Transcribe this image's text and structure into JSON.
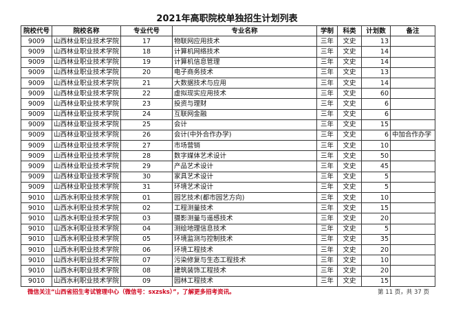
{
  "title": "2021年高职院校单独招生计划列表",
  "headers": [
    "院校代号",
    "院校名称",
    "专业代号",
    "专业名称",
    "学制",
    "科类",
    "计划数",
    "备注"
  ],
  "rows": [
    [
      "9009",
      "山西林业职业技术学院",
      "17",
      "物联网应用技术",
      "三年",
      "文史",
      "13",
      ""
    ],
    [
      "9009",
      "山西林业职业技术学院",
      "18",
      "计算机网络技术",
      "三年",
      "文史",
      "14",
      ""
    ],
    [
      "9009",
      "山西林业职业技术学院",
      "19",
      "计算机信息管理",
      "三年",
      "文史",
      "14",
      ""
    ],
    [
      "9009",
      "山西林业职业技术学院",
      "20",
      "电子商务技术",
      "三年",
      "文史",
      "13",
      ""
    ],
    [
      "9009",
      "山西林业职业技术学院",
      "21",
      "大数据技术与应用",
      "三年",
      "文史",
      "14",
      ""
    ],
    [
      "9009",
      "山西林业职业技术学院",
      "22",
      "虚拟现实应用技术",
      "三年",
      "文史",
      "60",
      ""
    ],
    [
      "9009",
      "山西林业职业技术学院",
      "23",
      "投资与理财",
      "三年",
      "文史",
      "6",
      ""
    ],
    [
      "9009",
      "山西林业职业技术学院",
      "24",
      "互联网金融",
      "三年",
      "文史",
      "6",
      ""
    ],
    [
      "9009",
      "山西林业职业技术学院",
      "25",
      "会计",
      "三年",
      "文史",
      "15",
      ""
    ],
    [
      "9009",
      "山西林业职业技术学院",
      "26",
      "会计(中外合作办学)",
      "三年",
      "文史",
      "6",
      "中加合作办学"
    ],
    [
      "9009",
      "山西林业职业技术学院",
      "27",
      "市场营销",
      "三年",
      "文史",
      "10",
      ""
    ],
    [
      "9009",
      "山西林业职业技术学院",
      "28",
      "数字媒体艺术设计",
      "三年",
      "文史",
      "50",
      ""
    ],
    [
      "9009",
      "山西林业职业技术学院",
      "29",
      "产品艺术设计",
      "三年",
      "文史",
      "45",
      ""
    ],
    [
      "9009",
      "山西林业职业技术学院",
      "30",
      "家具艺术设计",
      "三年",
      "文史",
      "5",
      ""
    ],
    [
      "9009",
      "山西林业职业技术学院",
      "31",
      "环境艺术设计",
      "三年",
      "文史",
      "5",
      ""
    ],
    [
      "9010",
      "山西水利职业技术学院",
      "01",
      "园艺技术(都市园艺方向)",
      "三年",
      "文史",
      "10",
      ""
    ],
    [
      "9010",
      "山西水利职业技术学院",
      "02",
      "工程测量技术",
      "三年",
      "文史",
      "15",
      ""
    ],
    [
      "9010",
      "山西水利职业技术学院",
      "03",
      "摄影测量与遥感技术",
      "三年",
      "文史",
      "20",
      ""
    ],
    [
      "9010",
      "山西水利职业技术学院",
      "04",
      "测绘地理信息技术",
      "三年",
      "文史",
      "5",
      ""
    ],
    [
      "9010",
      "山西水利职业技术学院",
      "05",
      "环境监测与控制技术",
      "三年",
      "文史",
      "35",
      ""
    ],
    [
      "9010",
      "山西水利职业技术学院",
      "06",
      "环境工程技术",
      "三年",
      "文史",
      "20",
      ""
    ],
    [
      "9010",
      "山西水利职业技术学院",
      "07",
      "污染修复与生态工程技术",
      "三年",
      "文史",
      "10",
      ""
    ],
    [
      "9010",
      "山西水利职业技术学院",
      "08",
      "建筑装饰工程技术",
      "三年",
      "文史",
      "20",
      ""
    ],
    [
      "9010",
      "山西水利职业技术学院",
      "09",
      "园林工程技术",
      "三年",
      "文史",
      "15",
      ""
    ]
  ],
  "footer_note": "微信关注“山西省招生考试管理中心（微信号：sxzsks）”，了解更多招考资讯。",
  "page_info": "第 11 页，共 37 页",
  "colors": {
    "footer_note": "#d0021b",
    "border": "#333333"
  }
}
